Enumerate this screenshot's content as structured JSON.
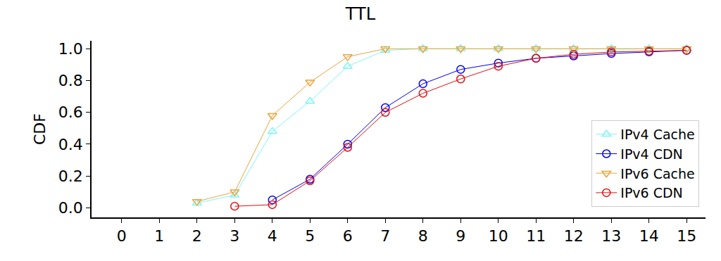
{
  "chart_data": {
    "type": "line",
    "title": "TTL",
    "y_label": "CDF",
    "x": [
      2,
      3,
      4,
      5,
      6,
      7,
      8,
      9,
      10,
      11,
      12,
      13,
      14,
      15
    ],
    "series": [
      {
        "name": "IPv4 Cache",
        "color": "#7ff5f5",
        "marker": "triangle-up",
        "values": [
          0.03,
          0.08,
          0.48,
          0.67,
          0.89,
          0.99,
          1.0,
          1.0,
          1.0,
          1.0,
          1.0,
          1.0,
          1.0,
          1.0
        ]
      },
      {
        "name": "IPv4 CDN",
        "color": "#0000ee",
        "marker": "circle",
        "values": [
          null,
          null,
          0.05,
          0.18,
          0.4,
          0.63,
          0.78,
          0.87,
          0.91,
          0.94,
          0.955,
          0.97,
          0.98,
          0.99
        ]
      },
      {
        "name": "IPv6 Cache",
        "color": "#eba43a",
        "marker": "triangle-down",
        "values": [
          0.04,
          0.1,
          0.58,
          0.79,
          0.95,
          1.0,
          1.0,
          1.0,
          1.0,
          1.0,
          1.0,
          1.0,
          1.0,
          1.0
        ]
      },
      {
        "name": "IPv6 CDN",
        "color": "#dd1111",
        "marker": "circle",
        "values": [
          null,
          0.01,
          0.02,
          0.17,
          0.38,
          0.6,
          0.72,
          0.81,
          0.89,
          0.94,
          0.965,
          0.98,
          0.985,
          0.99
        ]
      }
    ],
    "xlim": [
      -0.8,
      15.5
    ],
    "xticks": [
      0,
      1,
      2,
      3,
      4,
      5,
      6,
      7,
      8,
      9,
      10,
      11,
      12,
      13,
      14,
      15
    ],
    "ylim": [
      -0.06,
      1.05
    ],
    "yticks": [
      {
        "value": 0,
        "label": "0.0"
      },
      0.2,
      0.4,
      0.6,
      0.8,
      {
        "value": 1,
        "label": "1.0"
      }
    ],
    "grid": false,
    "legend": "lower right"
  }
}
